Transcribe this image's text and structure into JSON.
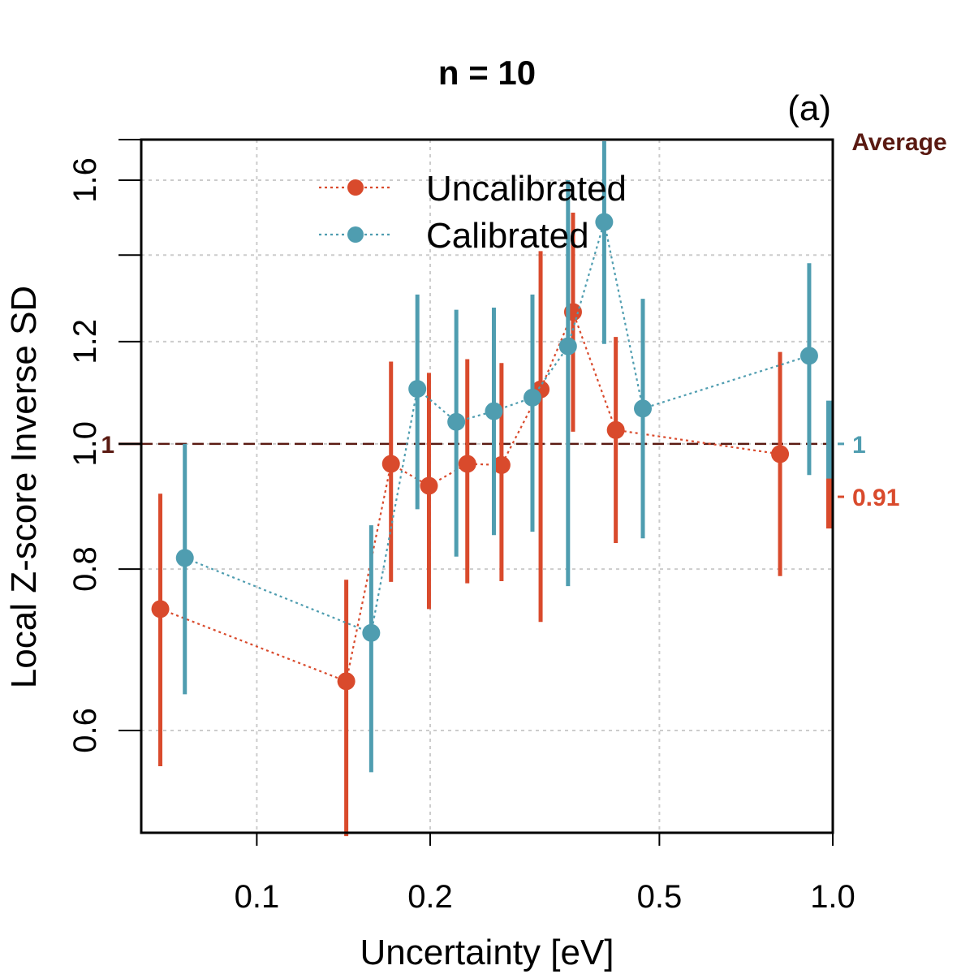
{
  "chart_data": {
    "type": "scatter",
    "title": "n = 10",
    "panel_label": "(a)",
    "xlabel": "Uncertainty [eV]",
    "ylabel": "Local Z-score Inverse SD",
    "x_scale": "log",
    "y_scale": "log",
    "xlim": [
      0.063,
      1.0
    ],
    "ylim": [
      0.5,
      1.72
    ],
    "x_ticks": [
      {
        "value": 0.1,
        "label": "0.1"
      },
      {
        "value": 0.2,
        "label": "0.2"
      },
      {
        "value": 0.5,
        "label": "0.5"
      },
      {
        "value": 1.0,
        "label": "1.0"
      }
    ],
    "y_ticks": [
      {
        "value": 0.6,
        "label": "0.6"
      },
      {
        "value": 0.8,
        "label": "0.8"
      },
      {
        "value": 1.0,
        "label": "1.0"
      },
      {
        "value": 1.2,
        "label": "1.2"
      },
      {
        "value": 1.6,
        "label": "1.6"
      }
    ],
    "y_minor_ticks": [
      1.4,
      1.72
    ],
    "grid": true,
    "legend_position": "top-center",
    "reference_line": {
      "value": 1,
      "label": "1",
      "color": "#5a1a12"
    },
    "average_header": "Average",
    "series": [
      {
        "name": "Uncalibrated",
        "color": "#d94a2c",
        "x": [
          0.068,
          0.143,
          0.171,
          0.199,
          0.232,
          0.266,
          0.311,
          0.354,
          0.42,
          0.81
        ],
        "y": [
          0.745,
          0.655,
          0.965,
          0.928,
          0.965,
          0.963,
          1.102,
          1.265,
          1.025,
          0.982
        ],
        "lower": [
          0.563,
          0.497,
          0.782,
          0.745,
          0.78,
          0.783,
          0.728,
          1.022,
          0.838,
          0.79
        ],
        "upper": [
          0.915,
          0.785,
          1.158,
          1.135,
          1.163,
          1.155,
          1.41,
          1.51,
          1.21,
          1.178
        ],
        "average": {
          "value": 0.91,
          "label": "0.91",
          "lower": 0.86,
          "upper": 0.95
        }
      },
      {
        "name": "Calibrated",
        "color": "#4f9db0",
        "x": [
          0.075,
          0.158,
          0.19,
          0.222,
          0.258,
          0.301,
          0.347,
          0.401,
          0.468,
          0.91
        ],
        "y": [
          0.816,
          0.714,
          1.103,
          1.04,
          1.06,
          1.086,
          1.19,
          1.485,
          1.065,
          1.17
        ],
        "lower": [
          0.64,
          0.557,
          0.89,
          0.818,
          0.85,
          0.855,
          0.776,
          1.195,
          0.845,
          0.946
        ],
        "upper": [
          1.0,
          0.865,
          1.305,
          1.27,
          1.275,
          1.305,
          1.6,
          1.715,
          1.295,
          1.38
        ],
        "average": {
          "value": 1,
          "label": "1",
          "lower": 0.94,
          "upper": 1.08
        }
      }
    ]
  }
}
